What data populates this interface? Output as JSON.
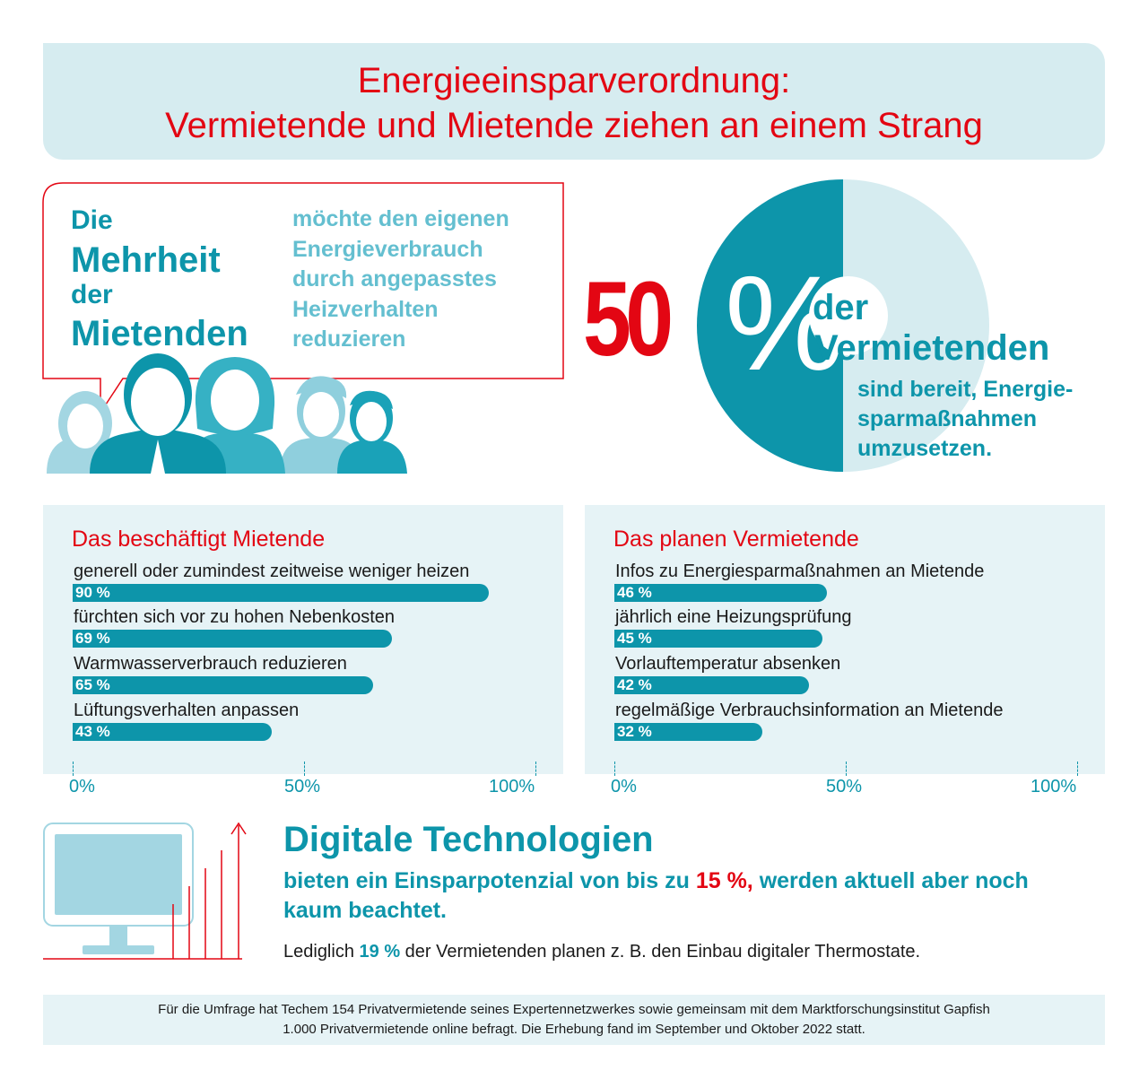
{
  "header": {
    "title_line1": "Energieeinsparverordnung:",
    "title_line2": "Vermietende und Mietende ziehen an einem Strang"
  },
  "mieter": {
    "die": "Die",
    "mehrheit": "Mehrheit",
    "der": "der",
    "mietenden": "Mietenden",
    "text_lines": [
      "möchte den eigenen",
      "Energieverbrauch",
      "durch angepasstes",
      "Heizverhalten",
      "reduzieren"
    ]
  },
  "vermieter": {
    "percent_number": "50",
    "percent_sign": "%",
    "der": "der",
    "vermietenden": "Vermietenden",
    "sub_lines": [
      "sind bereit, Energie-",
      "sparmaßnahmen",
      "umzusetzen."
    ],
    "share": 0.5
  },
  "colors": {
    "accent_red": "#e30613",
    "teal": "#0d95aa",
    "light_teal": "#64bfd0",
    "pale_teal": "#d6ecf0"
  },
  "chart_data": [
    {
      "type": "bar",
      "title": "Das beschäftigt Mietende",
      "categories": [
        "generell oder zumindest zeitweise weniger heizen",
        "fürchten sich vor zu hohen Nebenkosten",
        "Warmwasserverbrauch reduzieren",
        "Lüftungsverhalten anpassen"
      ],
      "values": [
        90,
        69,
        65,
        43
      ],
      "value_labels": [
        "90 %",
        "69 %",
        "65 %",
        "43 %"
      ],
      "xlim": [
        0,
        100
      ],
      "tick_labels": [
        "0%",
        "50%",
        "100%"
      ]
    },
    {
      "type": "bar",
      "title": "Das planen Vermietende",
      "categories": [
        "Infos zu Energiesparmaßnahmen an Mietende",
        "jährlich eine Heizungsprüfung",
        "Vorlauftemperatur absenken",
        "regelmäßige Verbrauchsinformation an Mietende"
      ],
      "values": [
        46,
        45,
        42,
        32
      ],
      "value_labels": [
        "46 %",
        "45 %",
        "42 %",
        "32 %"
      ],
      "xlim": [
        0,
        100
      ],
      "tick_labels": [
        "0%",
        "50%",
        "100%"
      ]
    }
  ],
  "digital": {
    "title": "Digitale Technologien",
    "text_before": "bieten ein Einsparpotenzial von bis zu",
    "highlight": "15 %,",
    "text_after": "werden aktuell aber noch kaum beachtet.",
    "note_before": "Lediglich",
    "note_highlight": "19 %",
    "note_after": "der Vermietenden planen z. B. den Einbau digitaler Thermostate."
  },
  "footer": {
    "line1": "Für die Umfrage hat Techem 154 Privatvermietende seines Expertennetzwerkes sowie gemeinsam mit dem Marktforschungsinstitut Gapfish",
    "line2": "1.000 Privatvermietende online befragt. Die Erhebung fand im September und Oktober 2022 statt."
  }
}
